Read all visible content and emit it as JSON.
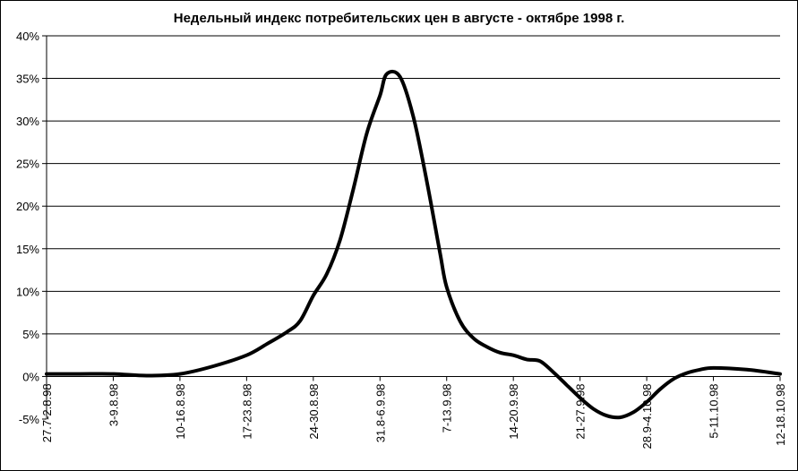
{
  "chart_data": {
    "type": "line",
    "title": "Недельный индекс потребительских цен в августе - октябре 1998 г.",
    "xlabel": "",
    "ylabel": "",
    "ylim": [
      -5,
      40
    ],
    "y_ticks": [
      -5,
      0,
      5,
      10,
      15,
      20,
      25,
      30,
      35,
      40
    ],
    "y_tick_labels": [
      "-5%",
      "0%",
      "5%",
      "10%",
      "15%",
      "20%",
      "25%",
      "30%",
      "35%",
      "40%"
    ],
    "categories": [
      "27.7-2.8.98",
      "3-9.8.98",
      "10-16.8.98",
      "17-23.8.98",
      "24-30.8.98",
      "31.8-6.9.98",
      "7-13.9.98",
      "14-20.9.98",
      "21-27.9.98",
      "28.9-4.10.98",
      "5-11.10.98",
      "12-18.10.98"
    ],
    "grid": true,
    "legend": "none",
    "line_color": "#000000",
    "series": [
      {
        "x": [
          0,
          0.5,
          1,
          1.5,
          2,
          2.5,
          3,
          3.3,
          3.6,
          3.8,
          4,
          4.2,
          4.4,
          4.6,
          4.8,
          5,
          5.1,
          5.3,
          5.5,
          5.7,
          5.9,
          6,
          6.2,
          6.4,
          6.6,
          6.8,
          7,
          7.2,
          7.4,
          7.6,
          7.8,
          8,
          8.2,
          8.4,
          8.6,
          8.8,
          9,
          9.2,
          9.4,
          9.6,
          9.8,
          10,
          10.5,
          11
        ],
        "values": [
          0.3,
          0.3,
          0.3,
          0.1,
          0.3,
          1.2,
          2.5,
          3.8,
          5.2,
          6.5,
          9.5,
          12,
          16,
          22,
          28.5,
          33,
          35.5,
          35.2,
          30.5,
          23,
          14.5,
          10.5,
          6.5,
          4.5,
          3.5,
          2.8,
          2.5,
          2,
          1.8,
          0.5,
          -1,
          -2.5,
          -3.8,
          -4.6,
          -4.8,
          -4.2,
          -3,
          -1.5,
          -0.3,
          0.4,
          0.8,
          1,
          0.8,
          0.3
        ]
      }
    ]
  }
}
